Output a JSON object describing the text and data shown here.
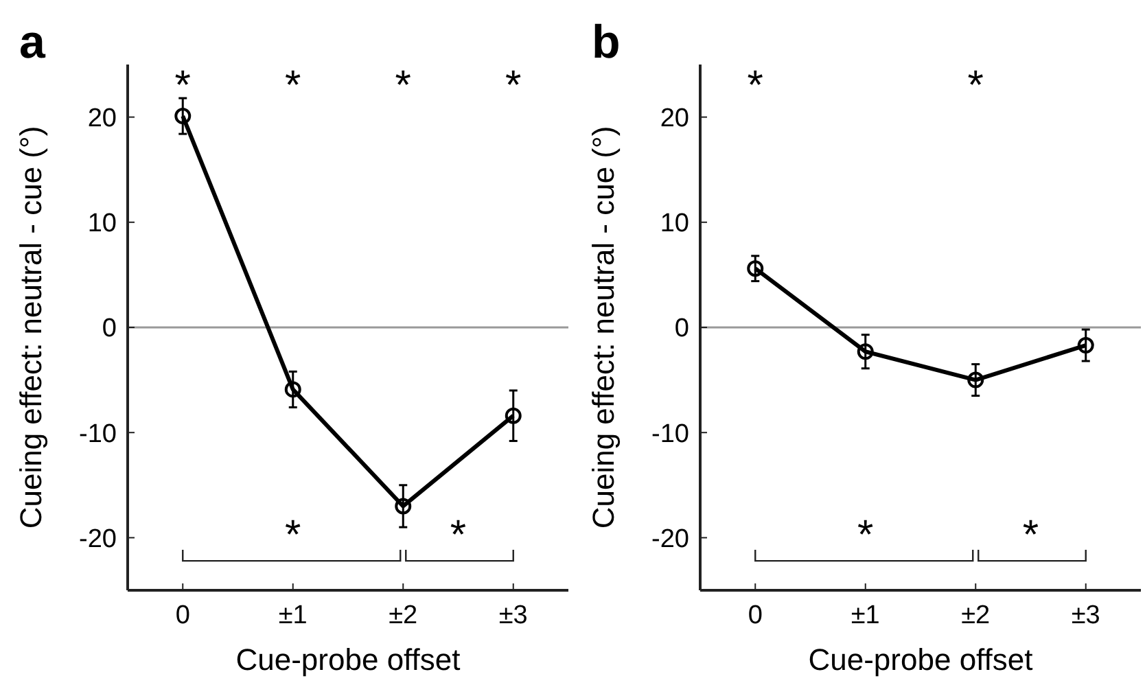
{
  "chart_data": [
    {
      "type": "line",
      "title": "a",
      "xlabel": "Cue-probe offset",
      "ylabel": "Cueing effect: neutral - cue (°)",
      "categories": [
        "0",
        "±1",
        "±2",
        "±3"
      ],
      "ylim": [
        -25,
        25
      ],
      "yticks": [
        -20,
        -10,
        0,
        10,
        20
      ],
      "series": [
        {
          "color": "#000000",
          "values": [
            20.1,
            -5.9,
            -17,
            -8.4
          ],
          "errors": [
            1.7,
            1.7,
            2,
            2.4
          ]
        }
      ],
      "marker": "circle",
      "line_style": "solid",
      "grid": false,
      "ref_lines": [
        {
          "axis": "y",
          "value": 0,
          "color": "#999999"
        }
      ],
      "annotations": [
        "*",
        "*",
        "*",
        "*",
        "*",
        "*"
      ]
    },
    {
      "type": "line",
      "title": "b",
      "xlabel": "Cue-probe offset",
      "ylabel": "Cueing effect: neutral - cue (°)",
      "categories": [
        "0",
        "±1",
        "±2",
        "±3"
      ],
      "ylim": [
        -25,
        25
      ],
      "yticks": [
        -20,
        -10,
        0,
        10,
        20
      ],
      "series": [
        {
          "color": "#000000",
          "values": [
            5.6,
            -2.3,
            -5,
            -1.7
          ],
          "errors": [
            1.2,
            1.6,
            1.5,
            1.5
          ]
        }
      ],
      "marker": "circle",
      "line_style": "solid",
      "grid": false,
      "ref_lines": [
        {
          "axis": "y",
          "value": 0,
          "color": "#999999"
        }
      ],
      "annotations": [
        "*",
        "*",
        "*",
        "*"
      ]
    }
  ]
}
